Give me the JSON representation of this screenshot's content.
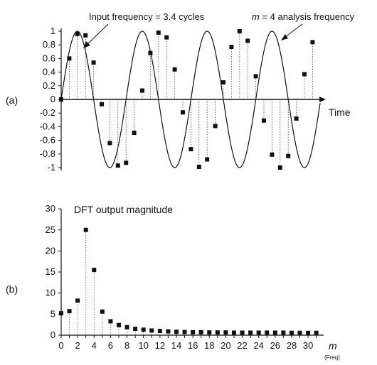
{
  "chart_data": [
    {
      "panel": "(a)",
      "type": "line",
      "x_label": "Time",
      "ylim": [
        -1,
        1
      ],
      "y_ticks": [
        "-1",
        "-0.8",
        "-0.6",
        "-0.4",
        "-0.2",
        "0",
        "0.2",
        "0.4",
        "0.6",
        "0.8",
        "1"
      ],
      "annotations": [
        {
          "text": "Input frequency = 3.4 cycles"
        },
        {
          "italic_prefix": "m",
          "text": " = 4 analysis frequency"
        }
      ],
      "sample_count": 32,
      "series": [
        {
          "kind": "samples",
          "cycles": 3.4,
          "values": [
            0,
            0.6,
            0.96,
            0.94,
            0.54,
            -0.07,
            -0.64,
            -0.97,
            -0.93,
            -0.49,
            0.13,
            0.68,
            0.98,
            0.91,
            0.44,
            -0.19,
            -0.73,
            -0.99,
            -0.88,
            -0.39,
            0.25,
            0.77,
            1.0,
            0.86,
            0.34,
            -0.31,
            -0.81,
            -1.0,
            -0.83,
            -0.28,
            0.37,
            0.84
          ]
        },
        {
          "kind": "continuous",
          "cycles": 4
        }
      ]
    },
    {
      "panel": "(b)",
      "type": "scatter",
      "title": "DFT output magnitude",
      "x_label": "m",
      "x_label_sub": "(Freq)",
      "ylim": [
        0,
        30
      ],
      "xlim": [
        0,
        31
      ],
      "x_ticks": [
        "0",
        "2",
        "4",
        "6",
        "8",
        "10",
        "12",
        "14",
        "16",
        "18",
        "20",
        "22",
        "24",
        "26",
        "28",
        "30"
      ],
      "y_ticks": [
        "0",
        "5",
        "10",
        "15",
        "20",
        "25",
        "30"
      ],
      "x": [
        0,
        1,
        2,
        3,
        4,
        5,
        6,
        7,
        8,
        9,
        10,
        11,
        12,
        13,
        14,
        15,
        16,
        17,
        18,
        19,
        20,
        21,
        22,
        23,
        24,
        25,
        26,
        27,
        28,
        29,
        30,
        31
      ],
      "values": [
        5.2,
        5.7,
        8.2,
        25.0,
        15.5,
        5.6,
        3.3,
        2.4,
        1.9,
        1.5,
        1.3,
        1.1,
        1.0,
        0.9,
        0.8,
        0.75,
        0.7,
        0.7,
        0.65,
        0.65,
        0.65,
        0.6,
        0.6,
        0.6,
        0.6,
        0.6,
        0.6,
        0.6,
        0.55,
        0.55,
        0.55,
        0.55
      ]
    }
  ]
}
